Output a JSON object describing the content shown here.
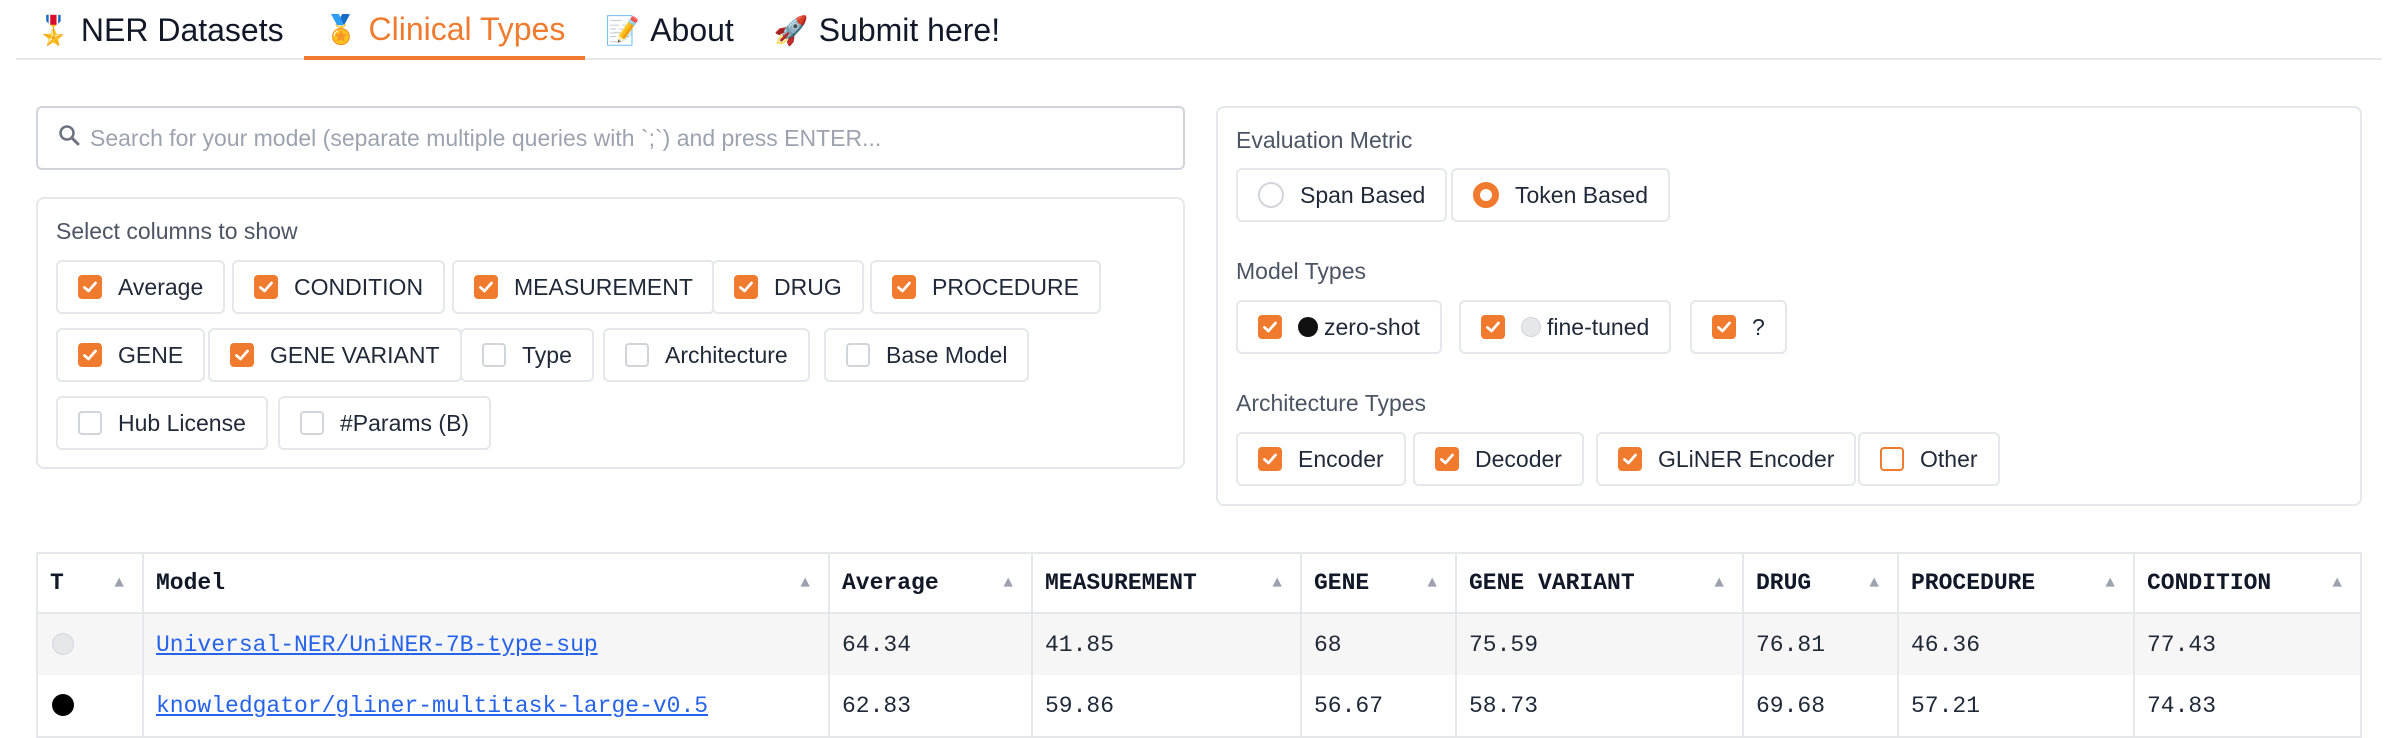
{
  "tabs": [
    {
      "icon": "🎖️",
      "label": "NER Datasets",
      "active": false
    },
    {
      "icon": "🏅",
      "label": "Clinical Types",
      "active": true
    },
    {
      "icon": "📝",
      "label": "About",
      "active": false
    },
    {
      "icon": "🚀",
      "label": "Submit here!",
      "active": false
    }
  ],
  "search": {
    "icon": "search-icon",
    "placeholder": "Search for your model (separate multiple queries with `;`) and press ENTER..."
  },
  "columns_panel": {
    "label": "Select columns to show",
    "options": [
      {
        "label": "Average",
        "checked": true
      },
      {
        "label": "CONDITION",
        "checked": true
      },
      {
        "label": "MEASUREMENT",
        "checked": true
      },
      {
        "label": "DRUG",
        "checked": true
      },
      {
        "label": "PROCEDURE",
        "checked": true
      },
      {
        "label": "GENE",
        "checked": true
      },
      {
        "label": "GENE VARIANT",
        "checked": true
      },
      {
        "label": "Type",
        "checked": false
      },
      {
        "label": "Architecture",
        "checked": false
      },
      {
        "label": "Base Model",
        "checked": false
      },
      {
        "label": "Hub License",
        "checked": false
      },
      {
        "label": "#Params (B)",
        "checked": false
      }
    ]
  },
  "filters": {
    "metric": {
      "label": "Evaluation Metric",
      "options": [
        {
          "label": "Span Based",
          "selected": false
        },
        {
          "label": "Token Based",
          "selected": true
        }
      ]
    },
    "model_types": {
      "label": "Model Types",
      "options": [
        {
          "label": "zero-shot",
          "dot": "black",
          "checked": true
        },
        {
          "label": "fine-tuned",
          "dot": "white",
          "checked": true
        },
        {
          "label": "?",
          "dot": "",
          "checked": true
        }
      ]
    },
    "arch_types": {
      "label": "Architecture Types",
      "options": [
        {
          "label": "Encoder",
          "checked": true
        },
        {
          "label": "Decoder",
          "checked": true
        },
        {
          "label": "GLiNER Encoder",
          "checked": true
        },
        {
          "label": "Other",
          "checked": false
        }
      ]
    }
  },
  "table": {
    "headers": [
      "T",
      "Model",
      "Average",
      "MEASUREMENT",
      "GENE",
      "GENE VARIANT",
      "DRUG",
      "PROCEDURE",
      "CONDITION"
    ],
    "rows": [
      {
        "type": "white",
        "model": "Universal-NER/UniNER-7B-type-sup",
        "values": [
          "64.34",
          "41.85",
          "68",
          "75.59",
          "76.81",
          "46.36",
          "77.43"
        ]
      },
      {
        "type": "black",
        "model": "knowledgator/gliner-multitask-large-v0.5",
        "values": [
          "62.83",
          "59.86",
          "56.67",
          "58.73",
          "69.68",
          "57.21",
          "74.83"
        ]
      }
    ]
  },
  "colors": {
    "accent": "#f07a2e",
    "link": "#2563eb",
    "border": "#e5e7eb"
  }
}
